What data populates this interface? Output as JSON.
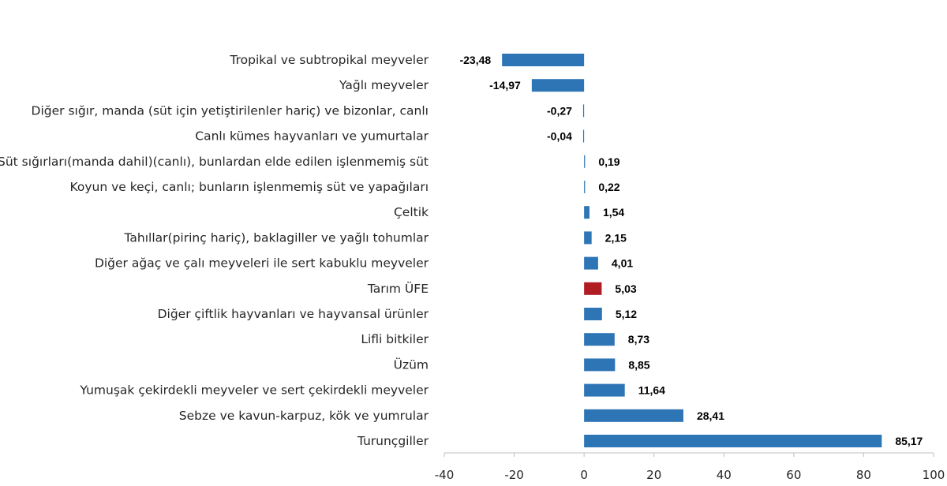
{
  "chart_data": {
    "type": "bar",
    "orientation": "horizontal",
    "title": "",
    "xlabel": "",
    "ylabel": "",
    "xlim": [
      -40,
      100
    ],
    "xticks": [
      -40,
      -20,
      0,
      20,
      40,
      60,
      80,
      100
    ],
    "grid": false,
    "legend": "none",
    "decimal_separator": ",",
    "colors": {
      "default": "#2e75b6",
      "highlight": "#b01c22"
    },
    "categories": [
      "Tropikal ve subtropikal meyveler",
      "Yağlı meyveler",
      "Diğer sığır, manda (süt için yetiştirilenler hariç) ve bizonlar, canlı",
      "Canlı kümes hayvanları ve yumurtalar",
      "Süt sığırları(manda dahil)(canlı), bunlardan elde edilen işlenmemiş süt",
      "Koyun ve keçi, canlı; bunların işlenmemiş süt ve yapağıları",
      "Çeltik",
      "Tahıllar(pirinç hariç), baklagiller ve yağlı tohumlar",
      "Diğer ağaç ve çalı meyveleri ile sert kabuklu meyveler",
      "Tarım ÜFE",
      "Diğer çiftlik hayvanları ve hayvansal ürünler",
      "Lifli bitkiler",
      "Üzüm",
      "Yumuşak çekirdekli meyveler ve sert çekirdekli meyveler",
      "Sebze ve kavun-karpuz, kök ve yumrular",
      "Turunçgiller"
    ],
    "values": [
      -23.48,
      -14.97,
      -0.27,
      -0.04,
      0.19,
      0.22,
      1.54,
      2.15,
      4.01,
      5.03,
      5.12,
      8.73,
      8.85,
      11.64,
      28.41,
      85.17
    ],
    "highlighted_category": "Tarım ÜFE"
  }
}
